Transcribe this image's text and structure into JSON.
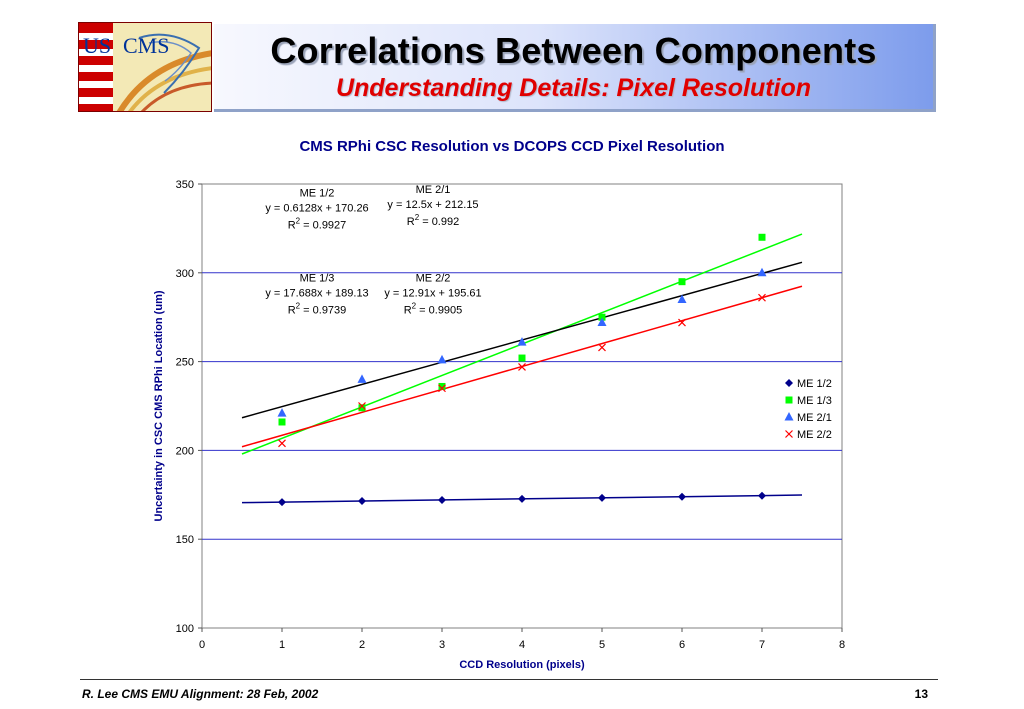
{
  "header": {
    "logo_text": "US CMS",
    "title": "Correlations Between Components",
    "subtitle": "Understanding Details: Pixel Resolution"
  },
  "footer": {
    "left_text": "R. Lee CMS EMU Alignment: 28 Feb, 2002",
    "page_number": "13"
  },
  "colors": {
    "title_blue": "#00008b",
    "subtitle_red": "#e00000",
    "plot_border": "#808080",
    "gridline": "#3333cc"
  },
  "chart_data": {
    "type": "scatter",
    "title": "CMS RPhi CSC Resolution vs DCOPS CCD Pixel Resolution",
    "xlabel": "CCD Resolution (pixels)",
    "ylabel": "Uncertainty in CSC CMS RPhi Location (um)",
    "xlim": [
      0,
      8
    ],
    "ylim": [
      100,
      350
    ],
    "xticks": [
      0,
      1,
      2,
      3,
      4,
      5,
      6,
      7,
      8
    ],
    "yticks": [
      100,
      150,
      200,
      250,
      300,
      350
    ],
    "grid": "horizontal",
    "legend_position": "right",
    "series": [
      {
        "name": "ME 1/2",
        "marker": "diamond",
        "color": "#00008b",
        "trend_color": "#00008b",
        "x": [
          1,
          2,
          3,
          4,
          5,
          6,
          7
        ],
        "y": [
          170.9,
          171.5,
          172.1,
          172.7,
          173.3,
          173.9,
          174.5
        ],
        "trend": {
          "slope": 0.6128,
          "intercept": 170.26,
          "x_range": [
            0.5,
            7.5
          ]
        }
      },
      {
        "name": "ME 1/3",
        "marker": "square",
        "color": "#00ff00",
        "trend_color": "#00ff00",
        "x": [
          1,
          2,
          3,
          4,
          5,
          6,
          7
        ],
        "y": [
          216,
          224,
          236,
          252,
          275,
          295,
          320
        ],
        "trend": {
          "slope": 17.688,
          "intercept": 189.13,
          "x_range": [
            0.5,
            7.5
          ]
        }
      },
      {
        "name": "ME 2/1",
        "marker": "triangle",
        "color": "#3366ff",
        "trend_color": "#000000",
        "x": [
          1,
          2,
          3,
          4,
          5,
          6,
          7
        ],
        "y": [
          221,
          240,
          251,
          261,
          272,
          285,
          300
        ],
        "trend": {
          "slope": 12.5,
          "intercept": 212.15,
          "x_range": [
            0.5,
            7.5
          ]
        }
      },
      {
        "name": "ME 2/2",
        "marker": "x",
        "color": "#ff0000",
        "trend_color": "#ff0000",
        "x": [
          1,
          2,
          3,
          4,
          5,
          6,
          7
        ],
        "y": [
          204,
          225,
          235,
          247,
          258,
          272,
          286
        ],
        "trend": {
          "slope": 12.91,
          "intercept": 195.61,
          "x_range": [
            0.5,
            7.5
          ]
        }
      }
    ],
    "annotations": [
      {
        "name": "ME 1/2",
        "equation": "y = 0.6128x + 170.26",
        "r2_label": "R",
        "r2_value": " = 0.9927",
        "x_data": 0.75,
        "y_data": 343
      },
      {
        "name": "ME 2/1",
        "equation": "y = 12.5x + 212.15",
        "r2_label": "R",
        "r2_value": " = 0.992",
        "x_data": 2.2,
        "y_data": 345
      },
      {
        "name": "ME 1/3",
        "equation": "y = 17.688x + 189.13",
        "r2_label": "R",
        "r2_value": " = 0.9739",
        "x_data": 0.75,
        "y_data": 295
      },
      {
        "name": "ME 2/2",
        "equation": "y = 12.91x + 195.61",
        "r2_label": "R",
        "r2_value": " = 0.9905",
        "x_data": 2.2,
        "y_data": 295
      }
    ]
  }
}
